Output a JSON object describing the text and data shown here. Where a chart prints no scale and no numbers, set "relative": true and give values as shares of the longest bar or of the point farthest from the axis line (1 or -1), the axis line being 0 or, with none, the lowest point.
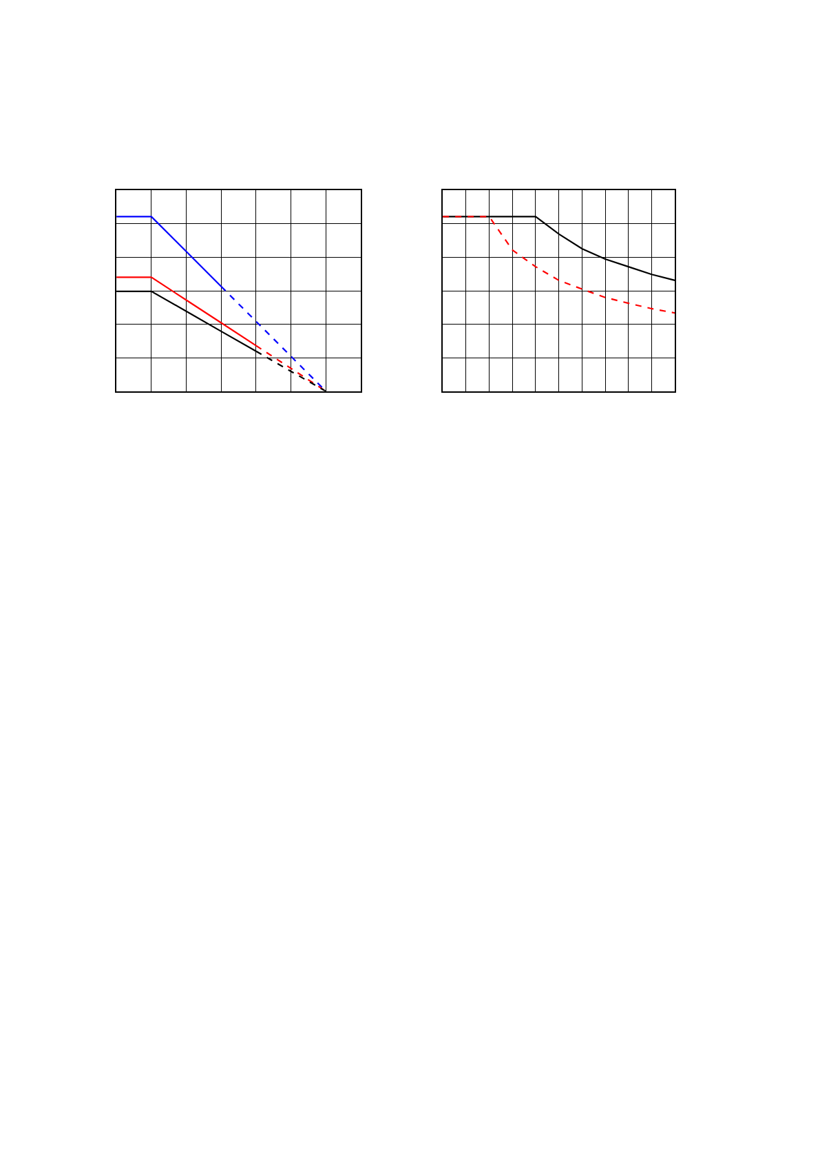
{
  "chart_data": [
    {
      "type": "line",
      "relative": true,
      "grid": true,
      "categories": [
        null,
        null,
        null,
        null,
        null,
        null,
        null,
        null
      ],
      "series": [
        {
          "color": "#0000ff",
          "line_style": "solid",
          "values": [
            1,
            1,
            0.8,
            0.6,
            null,
            null,
            null,
            null
          ]
        },
        {
          "color": "#0000ff",
          "line_style": "dashed",
          "values": [
            null,
            null,
            null,
            0.6,
            0.4,
            0.2,
            0,
            null
          ]
        },
        {
          "color": "#ff0000",
          "line_style": "solid",
          "values": [
            0.653,
            0.653,
            0.522,
            0.392,
            0.261,
            null,
            null,
            null
          ]
        },
        {
          "color": "#ff0000",
          "line_style": "dashed",
          "values": [
            null,
            null,
            null,
            null,
            0.261,
            0.131,
            0,
            null
          ]
        },
        {
          "color": "#000000",
          "line_style": "solid",
          "values": [
            0.572,
            0.572,
            0.458,
            0.343,
            0.229,
            null,
            null,
            null
          ]
        },
        {
          "color": "#000000",
          "line_style": "dashed",
          "values": [
            null,
            null,
            null,
            null,
            0.229,
            0.114,
            0,
            null
          ]
        }
      ]
    },
    {
      "type": "line",
      "relative": true,
      "grid": true,
      "categories": [
        null,
        null,
        null,
        null,
        null,
        null,
        null,
        null,
        null,
        null,
        null
      ],
      "series": [
        {
          "color": "#000000",
          "line_style": "solid",
          "values": [
            1,
            1,
            1,
            1,
            1,
            0.9,
            0.816,
            0.757,
            0.713,
            0.669,
            0.635
          ]
        },
        {
          "color": "#ff0000",
          "line_style": "dashed",
          "values": [
            1,
            1,
            1,
            0.809,
            0.713,
            0.635,
            0.585,
            0.537,
            0.504,
            0.473,
            0.448
          ]
        }
      ]
    }
  ]
}
